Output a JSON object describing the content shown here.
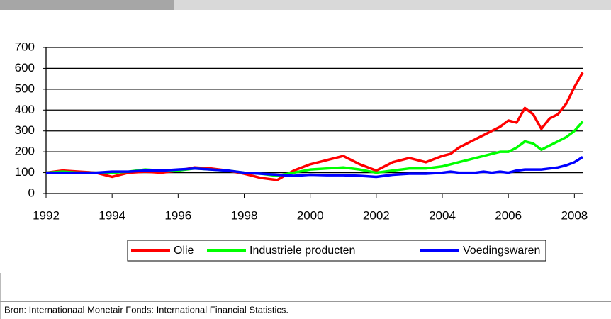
{
  "chart_data": {
    "type": "line",
    "x": [
      1992,
      1992.5,
      1993,
      1993.5,
      1994,
      1994.5,
      1995,
      1995.5,
      1996,
      1996.5,
      1997,
      1997.5,
      1998,
      1998.5,
      1999,
      1999.5,
      2000,
      2000.5,
      2001,
      2001.5,
      2002,
      2002.5,
      2003,
      2003.5,
      2004,
      2004.25,
      2004.5,
      2004.75,
      2005,
      2005.25,
      2005.5,
      2005.75,
      2006,
      2006.25,
      2006.5,
      2006.75,
      2007,
      2007.25,
      2007.5,
      2007.75,
      2008,
      2008.25
    ],
    "series": [
      {
        "name": "Olie",
        "color": "#ff0000",
        "values": [
          100,
          110,
          105,
          100,
          80,
          100,
          105,
          100,
          110,
          125,
          120,
          110,
          95,
          75,
          65,
          110,
          140,
          160,
          180,
          140,
          110,
          150,
          170,
          150,
          180,
          190,
          220,
          240,
          260,
          280,
          300,
          320,
          350,
          340,
          410,
          380,
          310,
          360,
          380,
          430,
          510,
          580
        ]
      },
      {
        "name": "Industriele producten",
        "color": "#00ff00",
        "values": [
          100,
          105,
          100,
          100,
          100,
          105,
          115,
          110,
          110,
          120,
          115,
          110,
          100,
          95,
          85,
          100,
          115,
          120,
          125,
          115,
          100,
          110,
          120,
          120,
          130,
          140,
          150,
          160,
          170,
          180,
          190,
          200,
          200,
          220,
          250,
          240,
          210,
          230,
          250,
          270,
          300,
          345
        ]
      },
      {
        "name": "Voedingswaren",
        "color": "#0000ff",
        "values": [
          100,
          100,
          100,
          100,
          105,
          105,
          110,
          110,
          115,
          120,
          115,
          110,
          100,
          95,
          90,
          85,
          90,
          88,
          88,
          85,
          80,
          90,
          95,
          95,
          100,
          105,
          100,
          100,
          100,
          105,
          100,
          105,
          100,
          110,
          115,
          115,
          115,
          120,
          125,
          135,
          150,
          175
        ]
      }
    ],
    "xlim": [
      1992,
      2008.25
    ],
    "xticks": [
      1992,
      1994,
      1996,
      1998,
      2000,
      2002,
      2004,
      2006,
      2008
    ],
    "ylim": [
      0,
      700
    ],
    "yticks": [
      0,
      100,
      200,
      300,
      400,
      500,
      600,
      700
    ],
    "grid": true,
    "source": "Bron: Internationaal Monetair Fonds: International Financial Statistics."
  }
}
